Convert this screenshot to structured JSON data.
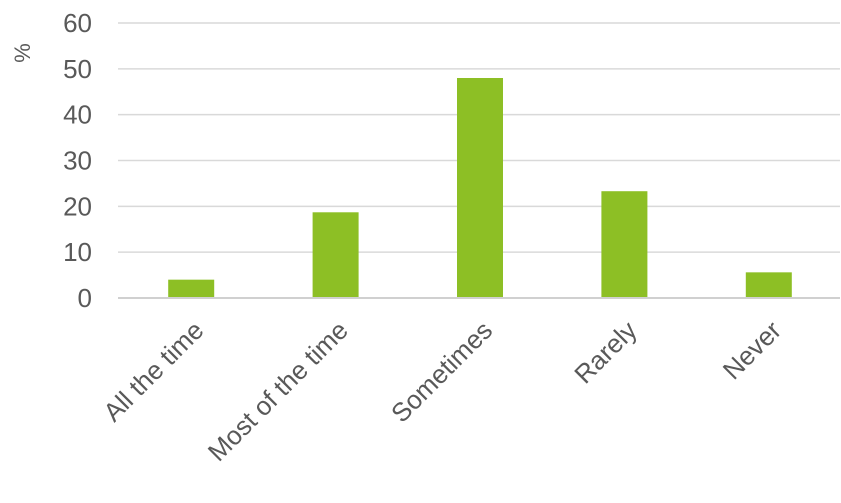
{
  "chart_data": {
    "type": "bar",
    "categories": [
      "All the time",
      "Most of the time",
      "Sometimes",
      "Rarely",
      "Never"
    ],
    "values": [
      4,
      18.7,
      48,
      23.3,
      5.6
    ],
    "ylabel": "%",
    "ylim": [
      0,
      60
    ],
    "yticks": [
      0,
      10,
      20,
      30,
      40,
      50,
      60
    ],
    "grid": true,
    "bar_color": "#8dbf25"
  }
}
